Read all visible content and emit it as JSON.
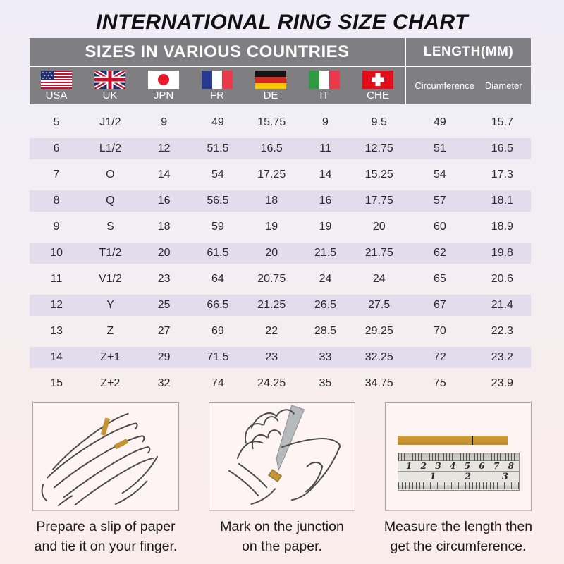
{
  "title": "INTERNATIONAL RING SIZE CHART",
  "table": {
    "header_countries": "SIZES IN VARIOUS COUNTRIES",
    "header_length": "LENGTH(MM)",
    "country_columns": [
      {
        "code": "USA",
        "flag": "usa"
      },
      {
        "code": "UK",
        "flag": "united-kingdom"
      },
      {
        "code": "JPN",
        "flag": "japan"
      },
      {
        "code": "FR",
        "flag": "france"
      },
      {
        "code": "DE",
        "flag": "germany"
      },
      {
        "code": "IT",
        "flag": "italy"
      },
      {
        "code": "CHE",
        "flag": "switzerland"
      }
    ],
    "length_columns": {
      "circumference": "Circumference",
      "diameter": "Diameter"
    },
    "rows": [
      [
        "5",
        "J1/2",
        "9",
        "49",
        "15.75",
        "9",
        "9.5",
        "49",
        "15.7"
      ],
      [
        "6",
        "L1/2",
        "12",
        "51.5",
        "16.5",
        "11",
        "12.75",
        "51",
        "16.5"
      ],
      [
        "7",
        "O",
        "14",
        "54",
        "17.25",
        "14",
        "15.25",
        "54",
        "17.3"
      ],
      [
        "8",
        "Q",
        "16",
        "56.5",
        "18",
        "16",
        "17.75",
        "57",
        "18.1"
      ],
      [
        "9",
        "S",
        "18",
        "59",
        "19",
        "19",
        "20",
        "60",
        "18.9"
      ],
      [
        "10",
        "T1/2",
        "20",
        "61.5",
        "20",
        "21.5",
        "21.75",
        "62",
        "19.8"
      ],
      [
        "11",
        "V1/2",
        "23",
        "64",
        "20.75",
        "24",
        "24",
        "65",
        "20.6"
      ],
      [
        "12",
        "Y",
        "25",
        "66.5",
        "21.25",
        "26.5",
        "27.5",
        "67",
        "21.4"
      ],
      [
        "13",
        "Z",
        "27",
        "69",
        "22",
        "28.5",
        "29.25",
        "70",
        "22.3"
      ],
      [
        "14",
        "Z+1",
        "29",
        "71.5",
        "23",
        "33",
        "32.25",
        "72",
        "23.2"
      ],
      [
        "15",
        "Z+2",
        "32",
        "74",
        "24.25",
        "35",
        "34.75",
        "75",
        "23.9"
      ]
    ]
  },
  "instructions": [
    {
      "illustration": "hand-with-paper-slip",
      "line1": "Prepare a slip of paper",
      "line2": "and tie it on your finger."
    },
    {
      "illustration": "mark-junction-with-pen",
      "line1": "Mark on the junction",
      "line2": "on the paper."
    },
    {
      "illustration": "ruler-measuring-strip",
      "line1": "Measure the length then",
      "line2": "get the circumference."
    }
  ],
  "ruler": {
    "cm_numbers": [
      "1",
      "2",
      "3",
      "4",
      "5",
      "6",
      "7",
      "8"
    ],
    "inch_numbers": [
      "1",
      "2",
      "3"
    ]
  },
  "colors": {
    "header_bg": "#7f7f82",
    "row_stripe": "#e2dcec",
    "gold": "#c6962e",
    "text": "#2a2a2e",
    "caption_text": "#1c1c1c"
  }
}
